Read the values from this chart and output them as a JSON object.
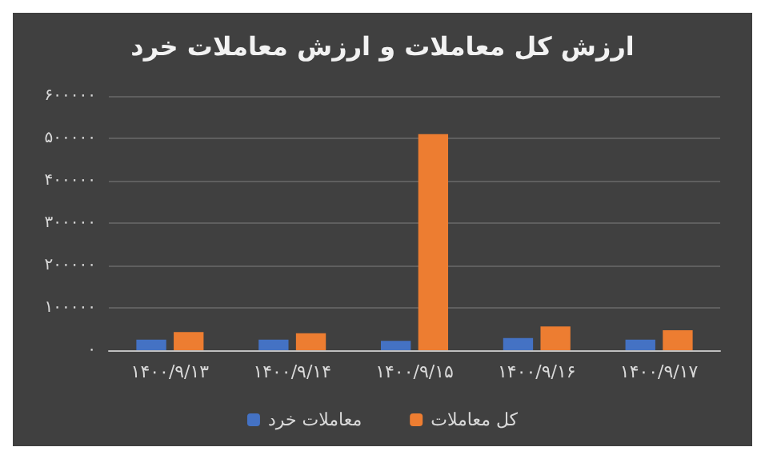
{
  "chart_data": {
    "type": "bar",
    "title": "ارزش کل معاملات و ارزش معاملات خرد",
    "categories": [
      "۱۴۰۰/۹/۱۳",
      "۱۴۰۰/۹/۱۴",
      "۱۴۰۰/۹/۱۵",
      "۱۴۰۰/۹/۱۶",
      "۱۴۰۰/۹/۱۷"
    ],
    "series": [
      {
        "name": "معاملات خرد",
        "color": "#4472c4",
        "values": [
          25000,
          25000,
          22000,
          29000,
          25000
        ]
      },
      {
        "name": "کل معاملات",
        "color": "#ed7d31",
        "values": [
          43000,
          40000,
          510000,
          56000,
          47000
        ]
      }
    ],
    "ylim": [
      0,
      600000
    ],
    "yticks": [
      {
        "value": 0,
        "label": "۰"
      },
      {
        "value": 100000,
        "label": "۱۰۰۰۰۰"
      },
      {
        "value": 200000,
        "label": "۲۰۰۰۰۰"
      },
      {
        "value": 300000,
        "label": "۳۰۰۰۰۰"
      },
      {
        "value": 400000,
        "label": "۴۰۰۰۰۰"
      },
      {
        "value": 500000,
        "label": "۵۰۰۰۰۰"
      },
      {
        "value": 600000,
        "label": "۶۰۰۰۰۰"
      }
    ],
    "grid": "y",
    "legend": "bottom"
  }
}
